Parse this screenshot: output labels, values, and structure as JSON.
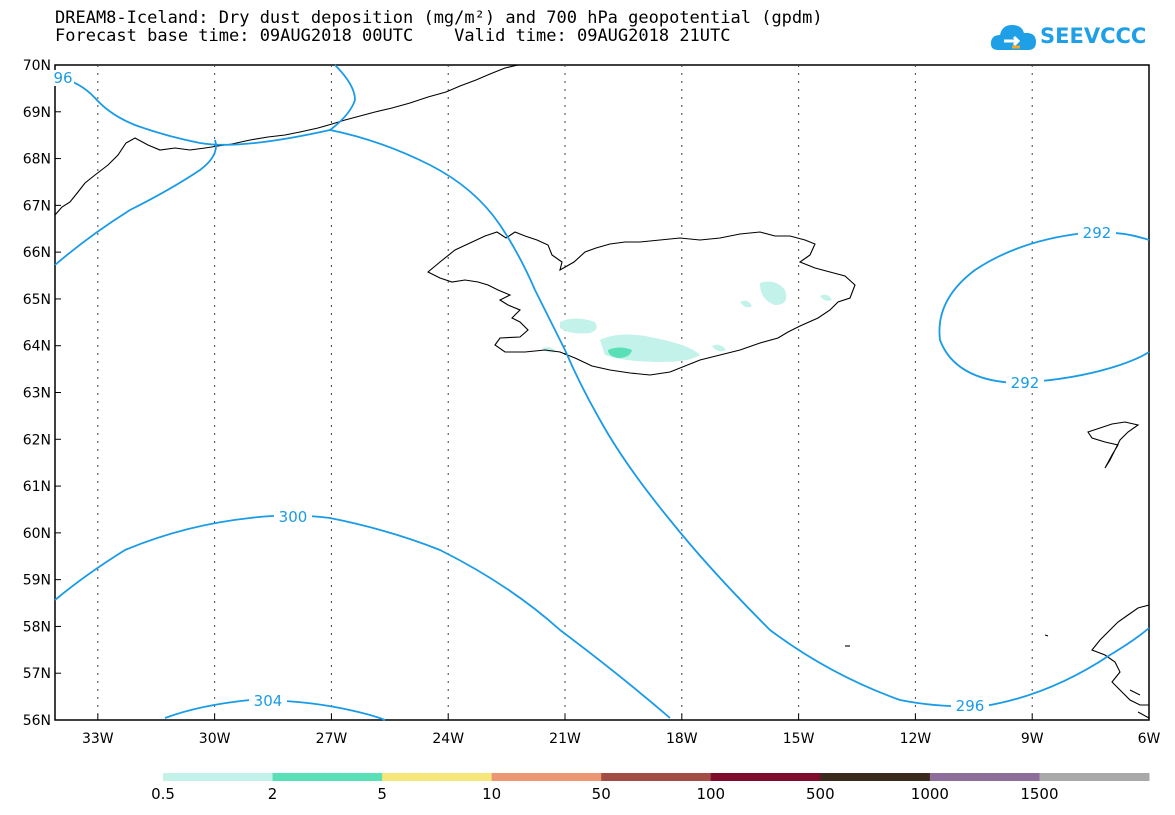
{
  "header": {
    "title_line1": "DREAM8-Iceland: Dry dust deposition (mg/m²) and 700 hPa geopotential (gpdm)",
    "title_line2": "Forecast base time: 09AUG2018 00UTC    Valid time: 09AUG2018 21UTC"
  },
  "logo": {
    "text": "SEEVCCC",
    "icon": "cloud-icon",
    "color": "#1fa0e6"
  },
  "map": {
    "lat_labels": [
      "70N",
      "69N",
      "68N",
      "67N",
      "66N",
      "65N",
      "64N",
      "63N",
      "62N",
      "61N",
      "60N",
      "59N",
      "58N",
      "57N",
      "56N"
    ],
    "lon_labels": [
      "33W",
      "30W",
      "27W",
      "24W",
      "21W",
      "18W",
      "15W",
      "12W",
      "9W",
      "6W"
    ],
    "contour_color": "#1a9be6",
    "contour_labels": [
      "96",
      "292",
      "292",
      "300",
      "304",
      "296"
    ]
  },
  "colorbar": {
    "labels": [
      "0.5",
      "2",
      "5",
      "10",
      "50",
      "100",
      "500",
      "1000",
      "1500"
    ],
    "colors": [
      "#c2f2ea",
      "#5ae0b6",
      "#f7e77a",
      "#ec9672",
      "#a34b45",
      "#7d0c2d",
      "#3a2a1c",
      "#8d6d9a",
      "#a9a9a9"
    ]
  }
}
